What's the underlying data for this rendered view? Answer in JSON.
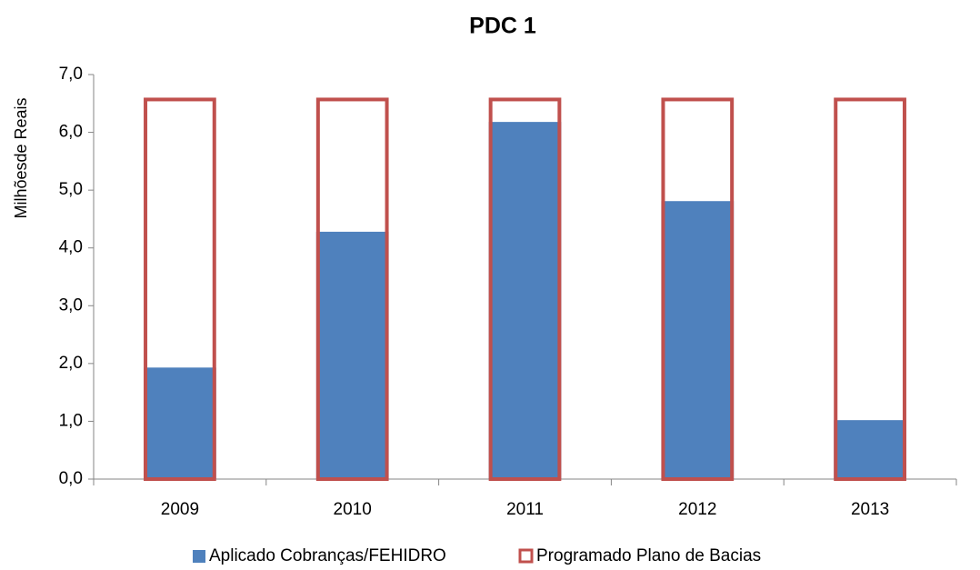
{
  "chart_data": {
    "type": "bar",
    "title": "PDC 1",
    "y_label": "Milhõesde Reais",
    "categories": [
      "2009",
      "2010",
      "2011",
      "2012",
      "2013"
    ],
    "series": [
      {
        "name": "Aplicado Cobranças/FEHIDRO",
        "color": "#4f81bd",
        "values": [
          1.93,
          4.28,
          6.18,
          4.81,
          1.02
        ]
      },
      {
        "name": "Programado Plano de Bacias",
        "color": "#c0504d",
        "outline": true,
        "values": [
          6.6,
          6.6,
          6.6,
          6.6,
          6.6
        ]
      }
    ],
    "ylim": [
      0,
      7
    ],
    "yticks": [
      {
        "value": 0,
        "label": "0,0"
      },
      {
        "value": 1,
        "label": "1,0"
      },
      {
        "value": 2,
        "label": "2,0"
      },
      {
        "value": 3,
        "label": "3,0"
      },
      {
        "value": 4,
        "label": "4,0"
      },
      {
        "value": 5,
        "label": "5,0"
      },
      {
        "value": 6,
        "label": "6,0"
      },
      {
        "value": 7,
        "label": "7,0"
      }
    ],
    "grid": false,
    "legend": "bottom"
  }
}
